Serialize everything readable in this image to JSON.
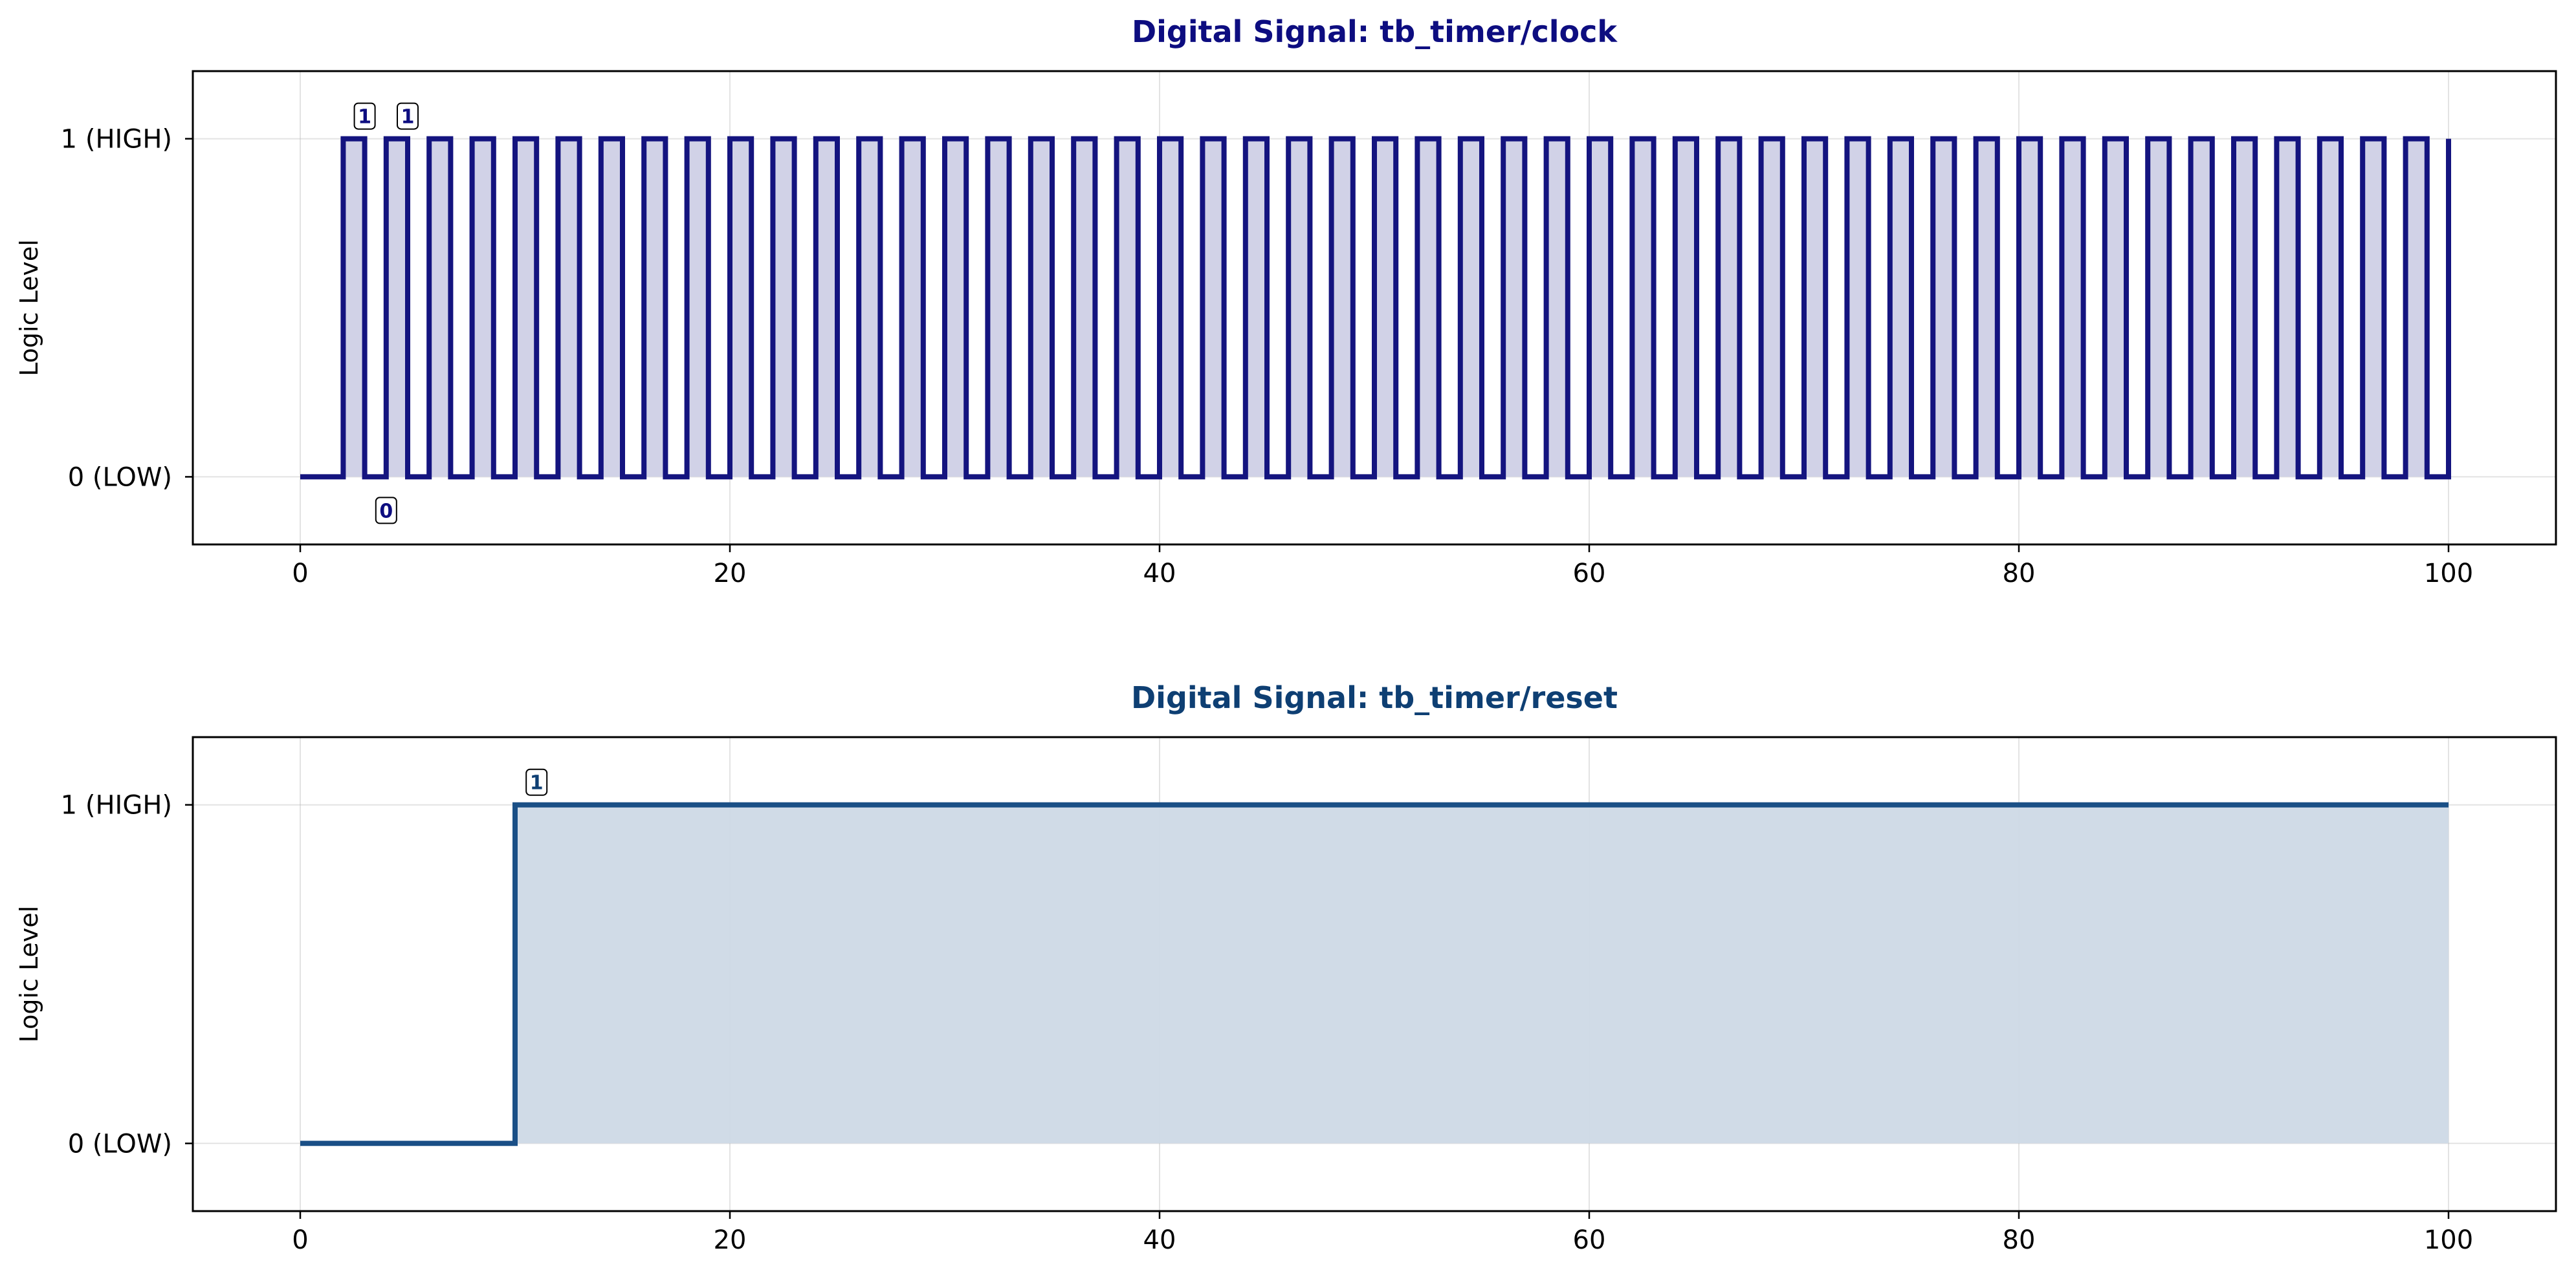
{
  "chart_data": [
    {
      "type": "line",
      "title": "Digital Signal: tb_timer/clock",
      "title_color": "#0d0d80",
      "line_color": "#14147f",
      "fill_color": "#cfd0e6",
      "ylabel": "Logic Level",
      "xlabel": "",
      "xlim": [
        -5,
        105
      ],
      "ylim": [
        -0.2,
        1.2
      ],
      "grid": true,
      "step": "post",
      "x_ticks": [
        0,
        20,
        40,
        60,
        80,
        100
      ],
      "y_ticks": [
        {
          "value": 0,
          "label": "0 (LOW)"
        },
        {
          "value": 1,
          "label": "1 (HIGH)"
        }
      ],
      "period": 2,
      "first_rise": 2,
      "duty_high": 1,
      "x_end": 100,
      "annotations": [
        {
          "x": 3,
          "y": 1,
          "text": "1"
        },
        {
          "x": 5,
          "y": 1,
          "text": "1"
        },
        {
          "x": 4,
          "y": 0,
          "text": "0"
        }
      ]
    },
    {
      "type": "line",
      "title": "Digital Signal: tb_timer/reset",
      "title_color": "#0e3f73",
      "line_color": "#1a4f86",
      "fill_color": "#cdd9e6",
      "ylabel": "Logic Level",
      "xlabel": "",
      "xlim": [
        -5,
        105
      ],
      "ylim": [
        -0.2,
        1.2
      ],
      "grid": true,
      "step": "post",
      "x_ticks": [
        0,
        20,
        40,
        60,
        80,
        100
      ],
      "y_ticks": [
        {
          "value": 0,
          "label": "0 (LOW)"
        },
        {
          "value": 1,
          "label": "1 (HIGH)"
        }
      ],
      "points": [
        {
          "x": 0,
          "y": 0
        },
        {
          "x": 10,
          "y": 1
        },
        {
          "x": 100,
          "y": 1
        }
      ],
      "annotations": [
        {
          "x": 11,
          "y": 1,
          "text": "1"
        }
      ]
    }
  ]
}
